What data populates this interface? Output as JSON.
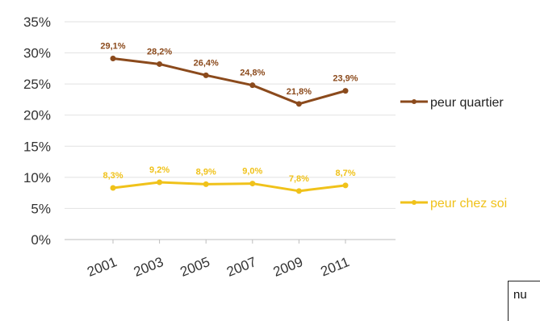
{
  "chart_data": {
    "type": "line",
    "categories": [
      "2001",
      "2003",
      "2005",
      "2007",
      "2009",
      "2011"
    ],
    "ylim": [
      0,
      35
    ],
    "yticks": [
      "0%",
      "5%",
      "10%",
      "15%",
      "20%",
      "25%",
      "30%",
      "35%"
    ],
    "grid": true,
    "legend": "right",
    "series": [
      {
        "name": "peur quartier",
        "color": "#8b4a1c",
        "values": [
          29.1,
          28.2,
          26.4,
          24.8,
          21.8,
          23.9
        ],
        "labels": [
          "29,1%",
          "28,2%",
          "26,4%",
          "24,8%",
          "21,8%",
          "23,9%"
        ]
      },
      {
        "name": "peur chez soi",
        "color": "#f0c21a",
        "values": [
          8.3,
          9.2,
          8.9,
          9.0,
          7.8,
          8.7
        ],
        "labels": [
          "8,3%",
          "9,2%",
          "8,9%",
          "9,0%",
          "7,8%",
          "8,7%"
        ]
      }
    ]
  },
  "corner_box": {
    "text": "nu"
  }
}
